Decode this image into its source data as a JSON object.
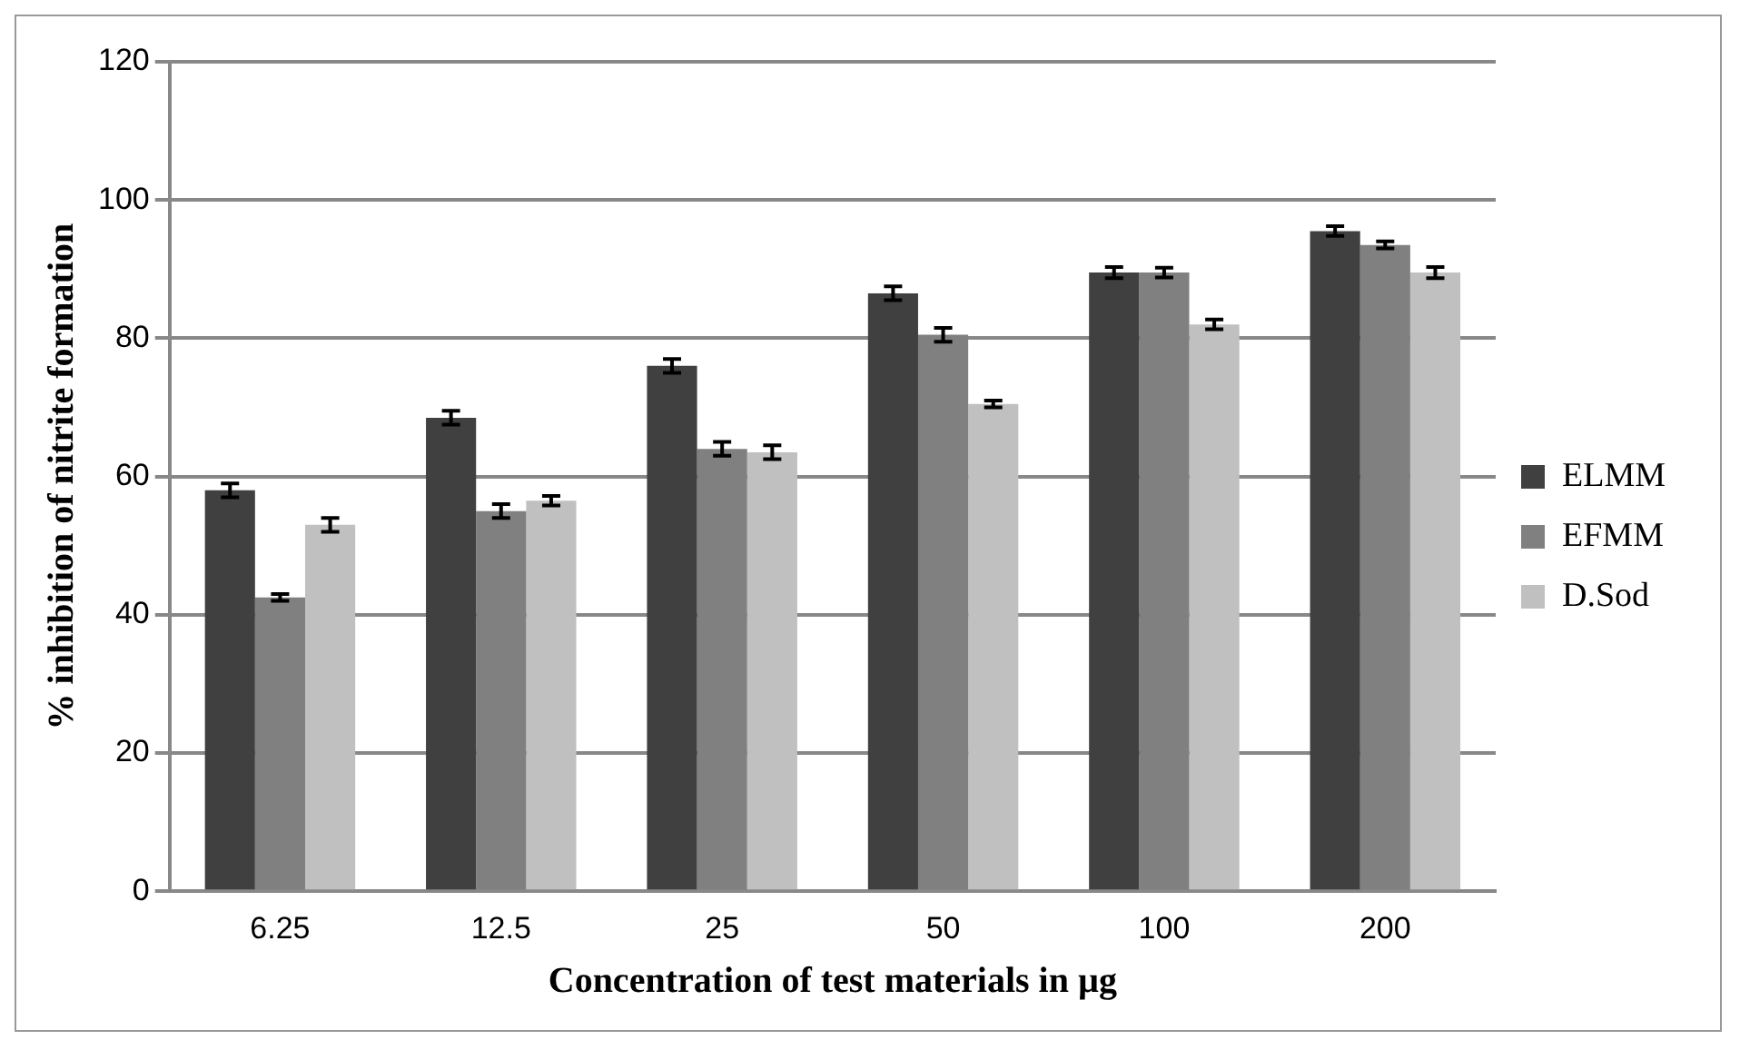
{
  "chart_data": {
    "type": "bar",
    "xlabel": "Concentration of test materials in µg",
    "ylabel": "% inhibition of nitrite formation",
    "categories": [
      "6.25",
      "12.5",
      "25",
      "50",
      "100",
      "200"
    ],
    "series": [
      {
        "name": "ELMM",
        "color": "#404040",
        "values": [
          58,
          68.5,
          76,
          86.5,
          89.5,
          95.5
        ],
        "errors": [
          1,
          1,
          1,
          1,
          0.8,
          0.7
        ]
      },
      {
        "name": "EFMM",
        "color": "#808080",
        "values": [
          42.5,
          55,
          64,
          80.5,
          89.5,
          93.5
        ],
        "errors": [
          0.5,
          1,
          1,
          1,
          0.7,
          0.5
        ]
      },
      {
        "name": "D.Sod",
        "color": "#c0c0c0",
        "values": [
          53,
          56.5,
          63.5,
          70.5,
          82,
          89.5
        ],
        "errors": [
          1,
          0.7,
          1,
          0.5,
          0.7,
          0.8
        ]
      }
    ],
    "ylim": [
      0,
      120
    ],
    "yticks": [
      0,
      20,
      40,
      60,
      80,
      100,
      120
    ],
    "grid": "y",
    "legend": "right"
  }
}
